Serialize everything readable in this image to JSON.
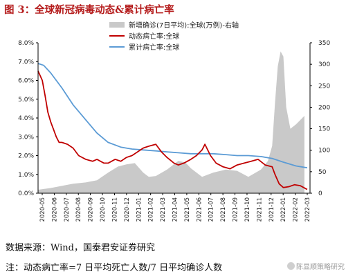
{
  "figure": {
    "title": "图 3：全球新冠病毒动态&累计病亡率",
    "source_text": "数据来源：Wind，国泰君安证券研究",
    "note_text": "注：动态病亡率=7 日平均死亡人数/7 日平均确诊人数",
    "watermark": "陈显顺策略研究"
  },
  "colors": {
    "title": "#b51c1c",
    "area": "#c9c9c9",
    "dynamic": "#c00000",
    "cumulative": "#5b9bd5"
  },
  "chart_data": {
    "type": "line",
    "legend_position": "top-center",
    "left_axis": {
      "min": 0,
      "max": 8,
      "step": 1,
      "tick_labels": [
        "0.0%",
        "1.0%",
        "2.0%",
        "3.0%",
        "4.0%",
        "5.0%",
        "6.0%",
        "7.0%",
        "8.0%"
      ]
    },
    "right_axis": {
      "min": 0,
      "max": 350,
      "step": 50,
      "tick_labels": [
        "0",
        "50",
        "100",
        "150",
        "200",
        "250",
        "300",
        "350"
      ]
    },
    "x_tick_labels": [
      "2020-05",
      "2020-06",
      "2020-07",
      "2020-08",
      "2020-09",
      "2020-10",
      "2020-11",
      "2020-12",
      "2021-01",
      "2021-02",
      "2021-03",
      "2021-04",
      "2021-05",
      "2021-06",
      "2021-07",
      "2021-08",
      "2021-09",
      "2021-10",
      "2021-11",
      "2021-12",
      "2022-01",
      "2022-02",
      "2022-03"
    ],
    "x": [
      2020.33,
      2020.42,
      2020.5,
      2020.58,
      2020.67,
      2020.75,
      2020.83,
      2020.92,
      2021.0,
      2021.08,
      2021.17,
      2021.25,
      2021.33,
      2021.42,
      2021.5,
      2021.58,
      2021.67,
      2021.75,
      2021.83,
      2021.92,
      2022.0,
      2022.08,
      2022.17,
      2022.25
    ],
    "series": [
      {
        "name": "新增确诊(7日平均):全球(万例)-右轴",
        "axis": "right",
        "kind": "area",
        "x": [
          2020.33,
          2020.42,
          2020.5,
          2020.58,
          2020.67,
          2020.75,
          2020.83,
          2020.9,
          2020.96,
          2021.02,
          2021.08,
          2021.12,
          2021.17,
          2021.25,
          2021.33,
          2021.38,
          2021.42,
          2021.5,
          2021.58,
          2021.67,
          2021.75,
          2021.83,
          2021.92,
          2021.97,
          2022.0,
          2022.02,
          2022.04,
          2022.06,
          2022.08,
          2022.1,
          2022.13,
          2022.17,
          2022.2,
          2022.23
        ],
        "values": [
          8,
          12,
          17,
          22,
          25,
          30,
          48,
          62,
          67,
          70,
          48,
          38,
          40,
          55,
          75,
          72,
          58,
          38,
          48,
          55,
          52,
          38,
          55,
          75,
          110,
          210,
          295,
          330,
          318,
          200,
          150,
          160,
          170,
          180
        ]
      },
      {
        "name": "动态病亡率:全球",
        "axis": "left",
        "kind": "line",
        "x": [
          2020.33,
          2020.36,
          2020.38,
          2020.4,
          2020.42,
          2020.44,
          2020.46,
          2020.48,
          2020.5,
          2020.54,
          2020.58,
          2020.62,
          2020.67,
          2020.72,
          2020.75,
          2020.8,
          2020.83,
          2020.88,
          2020.92,
          2020.96,
          2021.0,
          2021.04,
          2021.08,
          2021.12,
          2021.17,
          2021.21,
          2021.25,
          2021.3,
          2021.33,
          2021.37,
          2021.42,
          2021.46,
          2021.5,
          2021.52,
          2021.56,
          2021.6,
          2021.65,
          2021.7,
          2021.75,
          2021.8,
          2021.85,
          2021.9,
          2021.95,
          2022.0,
          2022.02,
          2022.05,
          2022.08,
          2022.12,
          2022.16,
          2022.2,
          2022.25
        ],
        "values": [
          6.5,
          6.0,
          5.2,
          4.3,
          3.8,
          3.4,
          3.0,
          2.7,
          2.7,
          2.6,
          2.4,
          2.0,
          1.8,
          1.7,
          1.8,
          1.6,
          1.6,
          1.8,
          1.7,
          1.9,
          2.0,
          2.2,
          2.4,
          2.5,
          2.6,
          2.2,
          1.9,
          1.6,
          1.5,
          1.6,
          1.8,
          2.0,
          2.3,
          2.6,
          2.0,
          1.6,
          1.4,
          1.3,
          1.5,
          1.6,
          1.7,
          1.8,
          1.5,
          1.4,
          1.0,
          0.5,
          0.3,
          0.35,
          0.45,
          0.4,
          0.2
        ]
      },
      {
        "name": "累计病亡率:全球",
        "axis": "left",
        "kind": "line",
        "x": [
          2020.33,
          2020.37,
          2020.42,
          2020.5,
          2020.58,
          2020.67,
          2020.75,
          2020.83,
          2020.92,
          2021.0,
          2021.08,
          2021.17,
          2021.25,
          2021.33,
          2021.42,
          2021.5,
          2021.58,
          2021.67,
          2021.75,
          2021.83,
          2021.92,
          2022.0,
          2022.08,
          2022.17,
          2022.25
        ],
        "values": [
          6.9,
          6.8,
          6.4,
          5.6,
          4.7,
          3.9,
          3.2,
          2.7,
          2.45,
          2.35,
          2.3,
          2.25,
          2.2,
          2.15,
          2.1,
          2.1,
          2.1,
          2.05,
          2.0,
          2.0,
          1.95,
          1.85,
          1.65,
          1.45,
          1.35
        ]
      }
    ]
  }
}
